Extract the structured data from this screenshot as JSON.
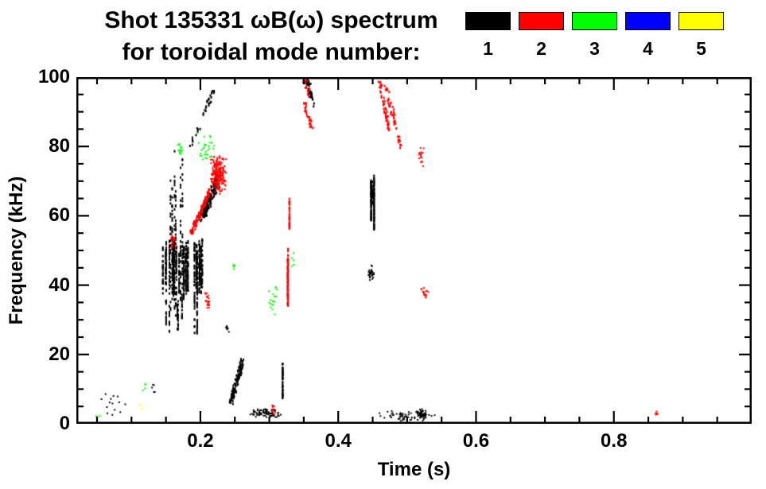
{
  "header": {
    "line1": "Shot 135331 ωB(ω) spectrum",
    "line2": "for toroidal mode number:"
  },
  "legend": {
    "items": [
      {
        "label": "1",
        "color": "#000000"
      },
      {
        "label": "2",
        "color": "#ff0000"
      },
      {
        "label": "3",
        "color": "#00ff00"
      },
      {
        "label": "4",
        "color": "#0000ff"
      },
      {
        "label": "5",
        "color": "#ffff00"
      }
    ]
  },
  "chart_data": {
    "type": "scatter",
    "title": "Shot 135331 ωB(ω) spectrum for toroidal mode number: 1 2 3 4 5",
    "xlabel": "Time (s)",
    "ylabel": "Frequency (kHz)",
    "xlim": [
      0.02,
      1.0
    ],
    "ylim": [
      0,
      100
    ],
    "grid": false,
    "legend_position": "top-right",
    "xticks": [
      {
        "v": 0.2,
        "label": "0.2"
      },
      {
        "v": 0.4,
        "label": "0.4"
      },
      {
        "v": 0.6,
        "label": "0.6"
      },
      {
        "v": 0.8,
        "label": "0.8"
      }
    ],
    "yticks": [
      {
        "v": 0,
        "label": "0"
      },
      {
        "v": 20,
        "label": "20"
      },
      {
        "v": 40,
        "label": "40"
      },
      {
        "v": 60,
        "label": "60"
      },
      {
        "v": 80,
        "label": "80"
      },
      {
        "v": 100,
        "label": "100"
      }
    ],
    "xminor": 0.05,
    "yminor": 5,
    "series": [
      {
        "name": "n=1",
        "color": "#000000",
        "clusters": [
          {
            "kind": "blob",
            "t": [
              0.055,
              0.095
            ],
            "f": [
              2,
              9
            ],
            "n": 14
          },
          {
            "kind": "blob",
            "t": [
              0.128,
              0.136
            ],
            "f": [
              8,
              12
            ],
            "n": 5
          },
          {
            "kind": "streaks",
            "t": [
              0.148,
              0.178
            ],
            "f": [
              30,
              80
            ],
            "n": 160,
            "lines": 6
          },
          {
            "kind": "streaks",
            "t": [
              0.143,
              0.205
            ],
            "f": [
              36,
              54
            ],
            "n": 700,
            "lines": 26
          },
          {
            "kind": "streaks",
            "t": [
              0.15,
              0.2
            ],
            "f": [
              25,
              38
            ],
            "n": 110,
            "lines": 8
          },
          {
            "kind": "chirp",
            "t": [
              0.203,
              0.225
            ],
            "f": [
              60,
              70
            ],
            "n": 150,
            "jt": 0.006,
            "jf": 3.5
          },
          {
            "kind": "chirp",
            "t": [
              0.205,
              0.22
            ],
            "f": [
              90,
              97
            ],
            "n": 22
          },
          {
            "kind": "chirp",
            "t": [
              0.185,
              0.2
            ],
            "f": [
              81,
              86
            ],
            "n": 10
          },
          {
            "kind": "chirp",
            "t": [
              0.244,
              0.261
            ],
            "f": [
              6,
              18
            ],
            "n": 120,
            "jt": 0.004,
            "jf": 2.5
          },
          {
            "kind": "blob",
            "t": [
              0.236,
              0.243
            ],
            "f": [
              26,
              29
            ],
            "n": 8
          },
          {
            "kind": "blob",
            "t": [
              0.272,
              0.318
            ],
            "f": [
              1.5,
              4.5
            ],
            "n": 80
          },
          {
            "kind": "streaks",
            "t": [
              0.318,
              0.324
            ],
            "f": [
              5,
              21
            ],
            "n": 55,
            "lines": 1
          },
          {
            "kind": "chirp",
            "t": [
              0.354,
              0.366
            ],
            "f": [
              100,
              91
            ],
            "n": 40
          },
          {
            "kind": "streaks",
            "t": [
              0.446,
              0.454
            ],
            "f": [
              55,
              72
            ],
            "n": 150,
            "lines": 2
          },
          {
            "kind": "blob",
            "t": [
              0.447,
              0.453
            ],
            "f": [
              63,
              70
            ],
            "n": 60
          },
          {
            "kind": "blob",
            "t": [
              0.443,
              0.452
            ],
            "f": [
              41,
              46
            ],
            "n": 35
          },
          {
            "kind": "blob",
            "t": [
              0.455,
              0.545
            ],
            "f": [
              0.5,
              4
            ],
            "n": 55
          },
          {
            "kind": "blob",
            "t": [
              0.512,
              0.528
            ],
            "f": [
              1,
              4.5
            ],
            "n": 45
          }
        ]
      },
      {
        "name": "n=2",
        "color": "#ff0000",
        "clusters": [
          {
            "kind": "blob",
            "t": [
              0.154,
              0.166
            ],
            "f": [
              50,
              55
            ],
            "n": 25
          },
          {
            "kind": "chirp",
            "t": [
              0.186,
              0.213
            ],
            "f": [
              55,
              67
            ],
            "n": 110,
            "jt": 0.003,
            "jf": 2
          },
          {
            "kind": "blob",
            "t": [
              0.214,
              0.238
            ],
            "f": [
              66,
              78
            ],
            "n": 240
          },
          {
            "kind": "blob",
            "t": [
              0.205,
              0.215
            ],
            "f": [
              31,
              40
            ],
            "n": 22
          },
          {
            "kind": "streaks",
            "t": [
              0.322,
              0.329
            ],
            "f": [
              31,
              53
            ],
            "n": 80,
            "lines": 2
          },
          {
            "kind": "streaks",
            "t": [
              0.324,
              0.33
            ],
            "f": [
              56,
              66
            ],
            "n": 30,
            "lines": 1
          },
          {
            "kind": "chirp",
            "t": [
              0.352,
              0.362
            ],
            "f": [
              92,
              85
            ],
            "n": 25
          },
          {
            "kind": "chirp",
            "t": [
              0.35,
              0.358
            ],
            "f": [
              100,
              95
            ],
            "n": 15
          },
          {
            "kind": "chirp",
            "t": [
              0.458,
              0.474
            ],
            "f": [
              100,
              85
            ],
            "n": 45
          },
          {
            "kind": "chirp",
            "t": [
              0.468,
              0.49
            ],
            "f": [
              99,
              80
            ],
            "n": 45
          },
          {
            "kind": "blob",
            "t": [
              0.516,
              0.525
            ],
            "f": [
              74,
              80
            ],
            "n": 18
          },
          {
            "kind": "blob",
            "t": [
              0.518,
              0.532
            ],
            "f": [
              36,
              41
            ],
            "n": 16
          },
          {
            "kind": "blob",
            "t": [
              0.3,
              0.31
            ],
            "f": [
              2,
              6
            ],
            "n": 10
          },
          {
            "kind": "blob",
            "t": [
              0.856,
              0.866
            ],
            "f": [
              2,
              4
            ],
            "n": 7
          }
        ]
      },
      {
        "name": "n=3",
        "color": "#00ff00",
        "clusters": [
          {
            "kind": "blob",
            "t": [
              0.045,
              0.058
            ],
            "f": [
              1,
              3
            ],
            "n": 4
          },
          {
            "kind": "blob",
            "t": [
              0.115,
              0.125
            ],
            "f": [
              9,
              12
            ],
            "n": 4
          },
          {
            "kind": "blob",
            "t": [
              0.165,
              0.176
            ],
            "f": [
              77,
              81
            ],
            "n": 14
          },
          {
            "kind": "blob",
            "t": [
              0.19,
              0.226
            ],
            "f": [
              74,
              85
            ],
            "n": 30
          },
          {
            "kind": "blob",
            "t": [
              0.245,
              0.252
            ],
            "f": [
              44,
              47
            ],
            "n": 5
          },
          {
            "kind": "blob",
            "t": [
              0.298,
              0.315
            ],
            "f": [
              30,
              42
            ],
            "n": 18
          },
          {
            "kind": "blob",
            "t": [
              0.33,
              0.34
            ],
            "f": [
              45,
              50
            ],
            "n": 5
          }
        ]
      },
      {
        "name": "n=4",
        "color": "#0000ff",
        "clusters": []
      },
      {
        "name": "n=5",
        "color": "#ffff00",
        "clusters": [
          {
            "kind": "blob",
            "t": [
              0.11,
              0.118
            ],
            "f": [
              4,
              6
            ],
            "n": 2
          }
        ]
      }
    ]
  }
}
